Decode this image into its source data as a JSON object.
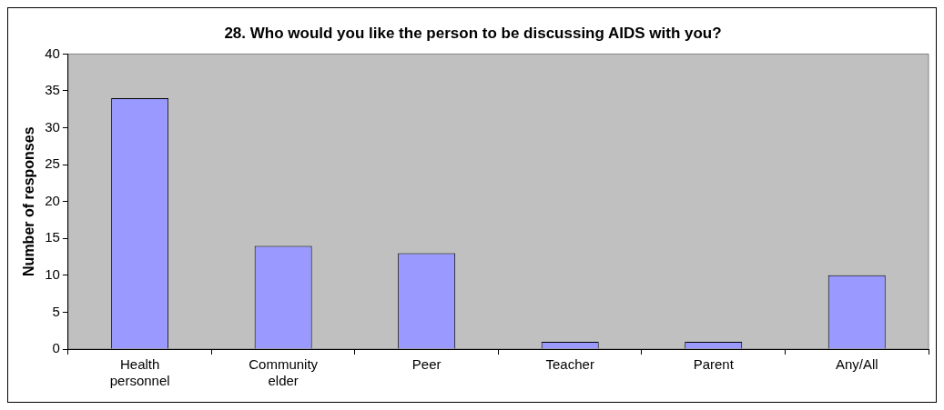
{
  "chart_data": {
    "type": "bar",
    "title": "28. Who would you like the person to be discussing AIDS with you?",
    "ylabel": "Number of responses",
    "categories": [
      "Health personnel",
      "Community elder",
      "Peer",
      "Teacher",
      "Parent",
      "Any/All"
    ],
    "values": [
      34,
      14,
      13,
      1,
      1,
      10
    ],
    "color": "#9999ff",
    "ylim": [
      0,
      40
    ],
    "yticks": [
      0,
      5,
      10,
      15,
      20,
      25,
      30,
      35,
      40
    ],
    "grid": false,
    "legend": false
  }
}
